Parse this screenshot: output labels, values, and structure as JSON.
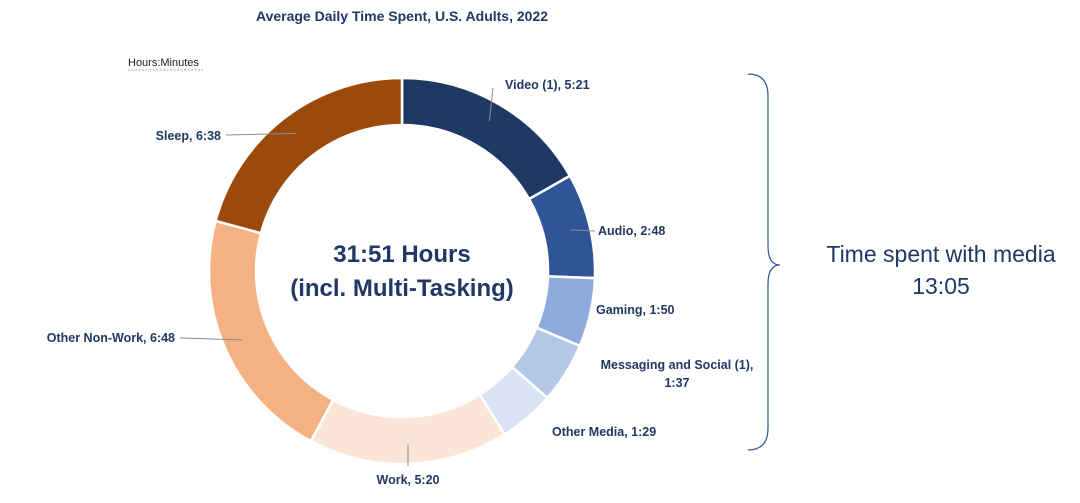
{
  "chart_data": {
    "type": "pie",
    "variant": "donut",
    "title": "Average Daily Time Spent, U.S. Adults, 2022",
    "units_note": "Hours:Minutes",
    "center_label": [
      "31:51 Hours",
      "(incl. Multi-Tasking)"
    ],
    "segments": [
      {
        "name": "Video (1)",
        "value_display": "5:21",
        "minutes": 321,
        "color": "#203864"
      },
      {
        "name": "Audio",
        "value_display": "2:48",
        "minutes": 168,
        "color": "#2f5597"
      },
      {
        "name": "Gaming",
        "value_display": "1:50",
        "minutes": 110,
        "color": "#8faadc"
      },
      {
        "name": "Messaging and Social (1)",
        "value_display": "1:37",
        "minutes": 97,
        "color": "#b4c7e7"
      },
      {
        "name": "Other Media",
        "value_display": "1:29",
        "minutes": 89,
        "color": "#dae3f3"
      },
      {
        "name": "Work",
        "value_display": "5:20",
        "minutes": 320,
        "color": "#fbe5d6"
      },
      {
        "name": "Other Non-Work",
        "value_display": "6:48",
        "minutes": 408,
        "color": "#f4b183"
      },
      {
        "name": "Sleep",
        "value_display": "6:38",
        "minutes": 398,
        "color": "#9c4a0c"
      }
    ],
    "bracket": {
      "label_line1": "Time spent with media",
      "label_line2": "13:05",
      "covers": [
        "Video (1)",
        "Audio",
        "Gaming",
        "Messaging and Social (1)",
        "Other Media"
      ]
    }
  }
}
